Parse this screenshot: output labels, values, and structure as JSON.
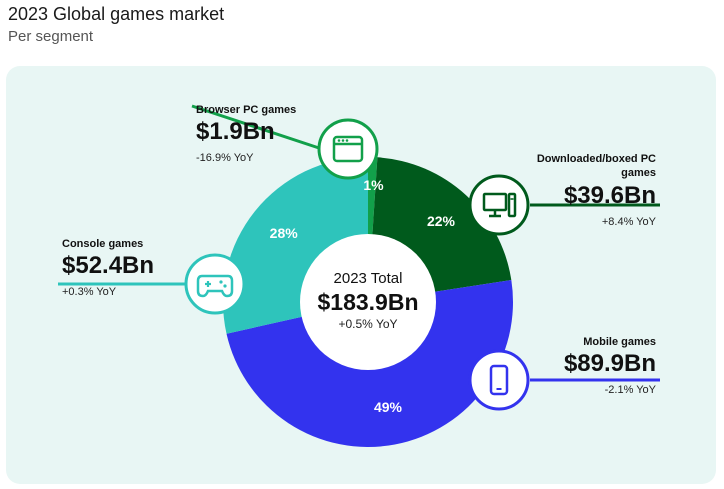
{
  "header": {
    "title": "2023 Global games market",
    "subtitle": "Per segment"
  },
  "center": {
    "title": "2023 Total",
    "value": "$183.9Bn",
    "yoy": "+0.5% YoY"
  },
  "colors": {
    "browser": "#12a04a",
    "downloaded": "#005a1c",
    "mobile": "#3333ee",
    "console": "#2ec4bb",
    "panel": "#e8f6f4"
  },
  "chart_data": {
    "type": "pie",
    "title": "2023 Global games market",
    "subtitle": "Per segment",
    "total": 183.9,
    "unit": "Bn",
    "series": [
      {
        "name": "Browser PC games",
        "value": 1.9,
        "share": 1,
        "value_label": "$1.9Bn",
        "yoy": "-16.9% YoY",
        "color": "#12a04a",
        "icon": "browser-window-icon"
      },
      {
        "name": "Downloaded/boxed PC games",
        "value": 39.6,
        "share": 22,
        "value_label": "$39.6Bn",
        "yoy": "+8.4% YoY",
        "color": "#005a1c",
        "icon": "desktop-computer-icon"
      },
      {
        "name": "Mobile games",
        "value": 89.9,
        "share": 49,
        "value_label": "$89.9Bn",
        "yoy": "-2.1% YoY",
        "color": "#3333ee",
        "icon": "smartphone-icon"
      },
      {
        "name": "Console games",
        "value": 52.4,
        "share": 28,
        "value_label": "$52.4Bn",
        "yoy": "+0.3% YoY",
        "color": "#2ec4bb",
        "icon": "gamepad-icon"
      }
    ]
  }
}
